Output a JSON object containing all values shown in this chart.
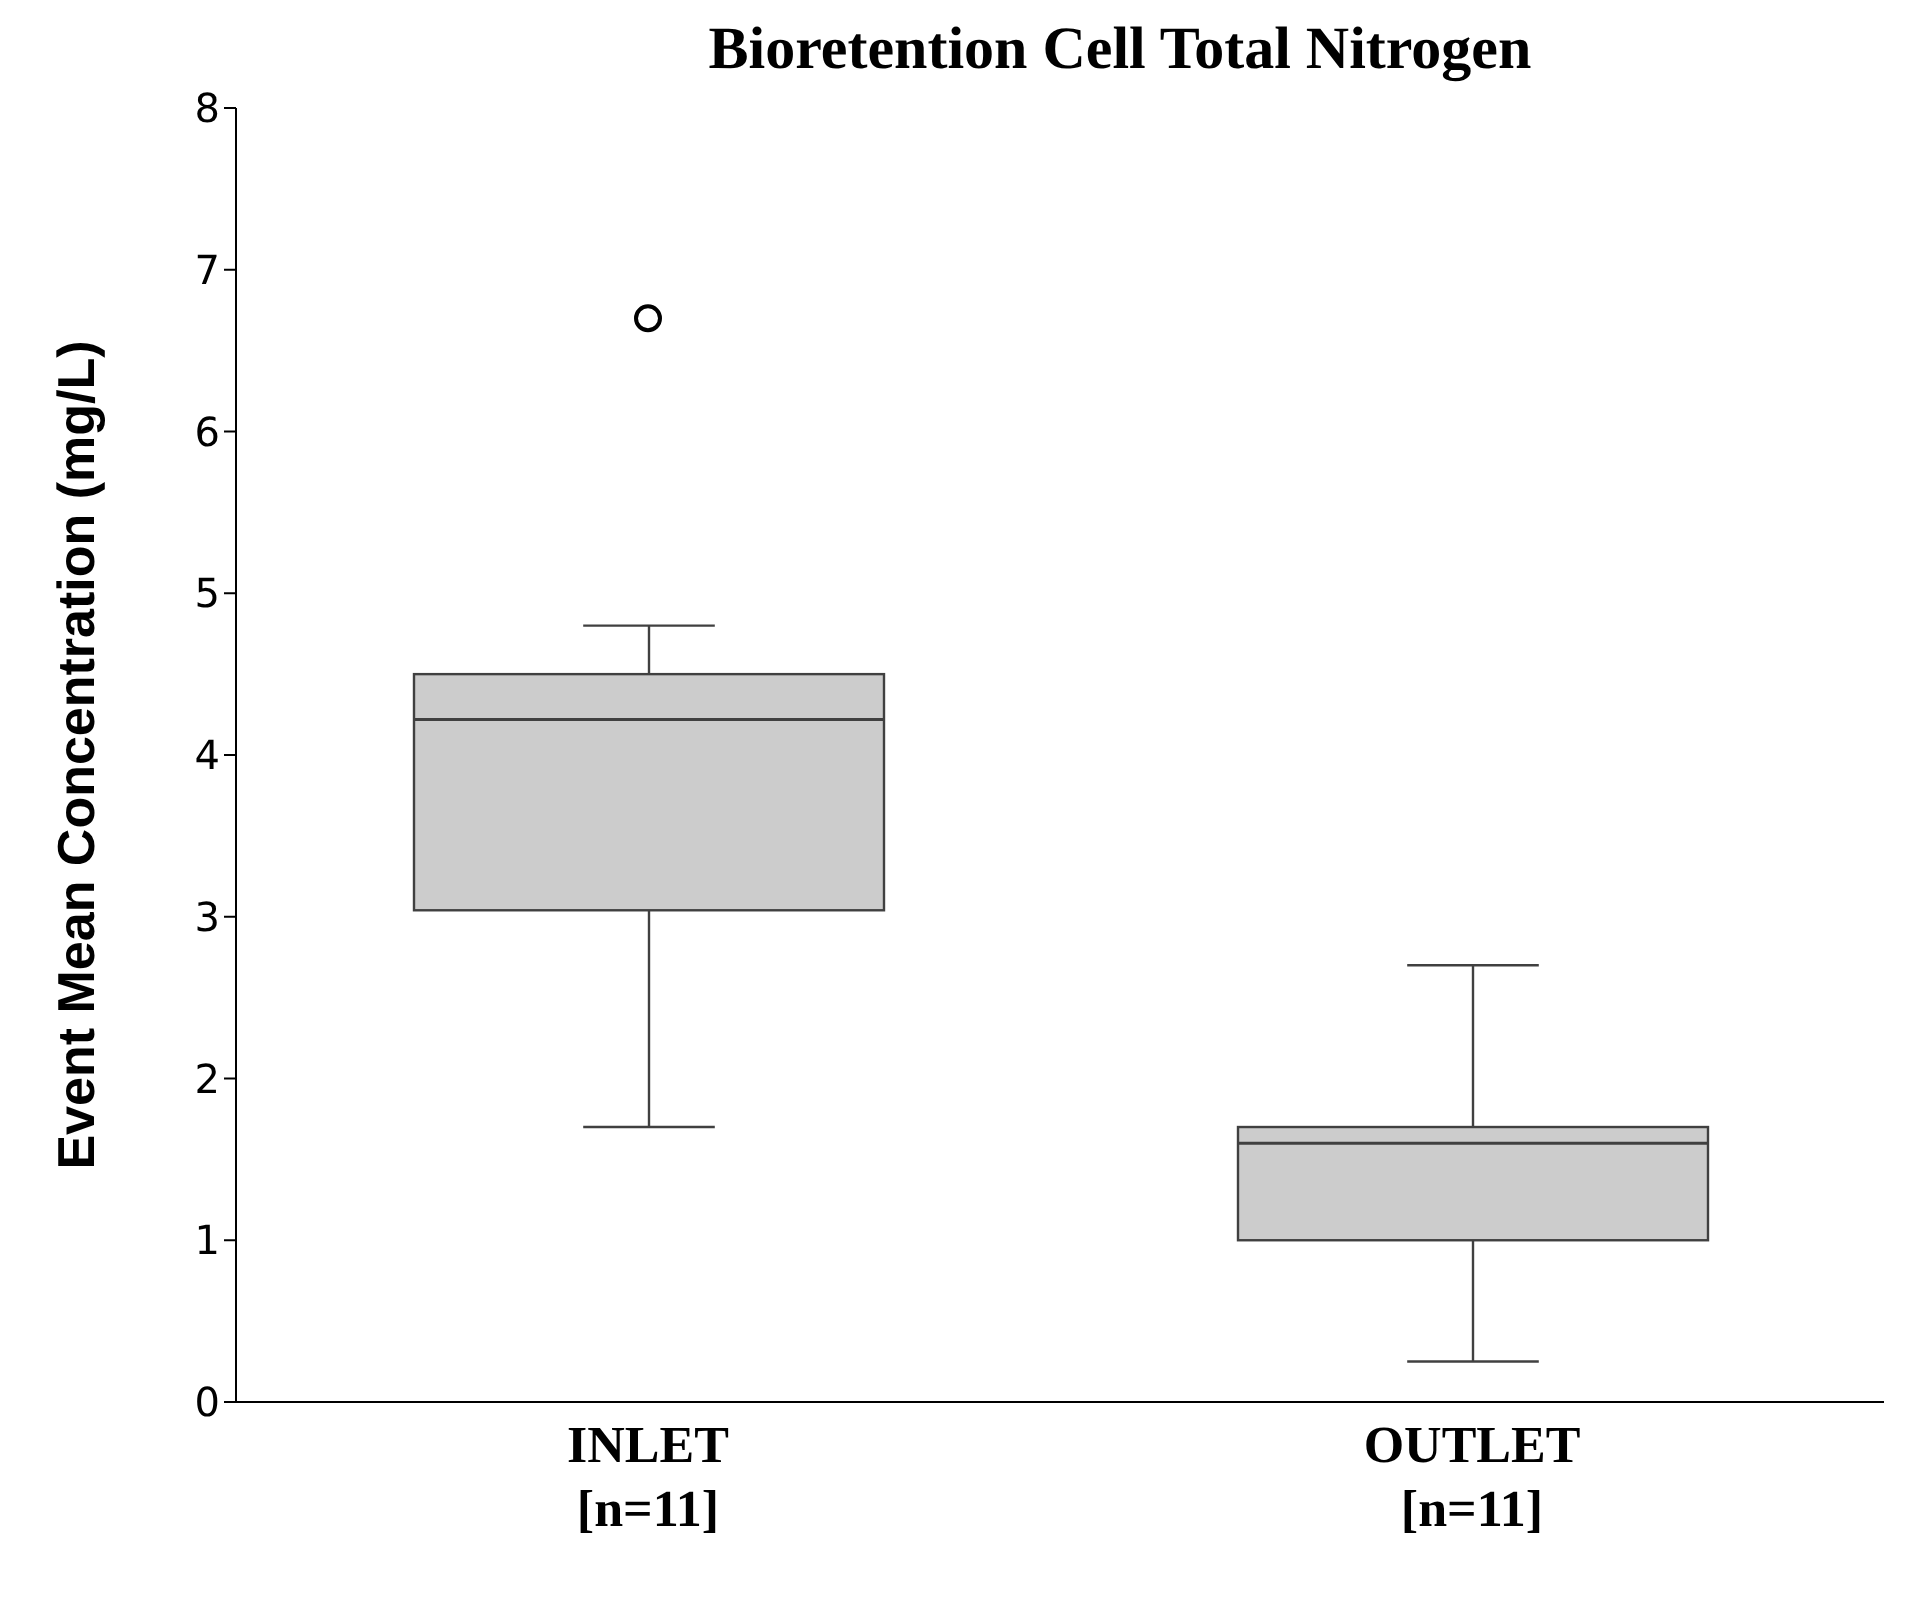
{
  "chart_data": {
    "type": "box",
    "title": "Bioretention Cell Total Nitrogen",
    "ylabel": "Event Mean Concentration (mg/L)",
    "categories": [
      "INLET\n[n=11]",
      "OUTLET\n[n=11]"
    ],
    "color": "#cccccc",
    "boxes": [
      {
        "low": 1.7,
        "q1": 3.04,
        "median": 4.22,
        "q3": 4.5,
        "high": 4.8,
        "outliers": [
          6.7
        ]
      },
      {
        "low": 0.25,
        "q1": 1.0,
        "median": 1.6,
        "q3": 1.7,
        "high": 2.7
      }
    ],
    "ylim": [
      0,
      8
    ],
    "yticks": [
      0,
      1,
      2,
      3,
      4,
      5,
      6,
      7,
      8
    ],
    "grid": false
  }
}
